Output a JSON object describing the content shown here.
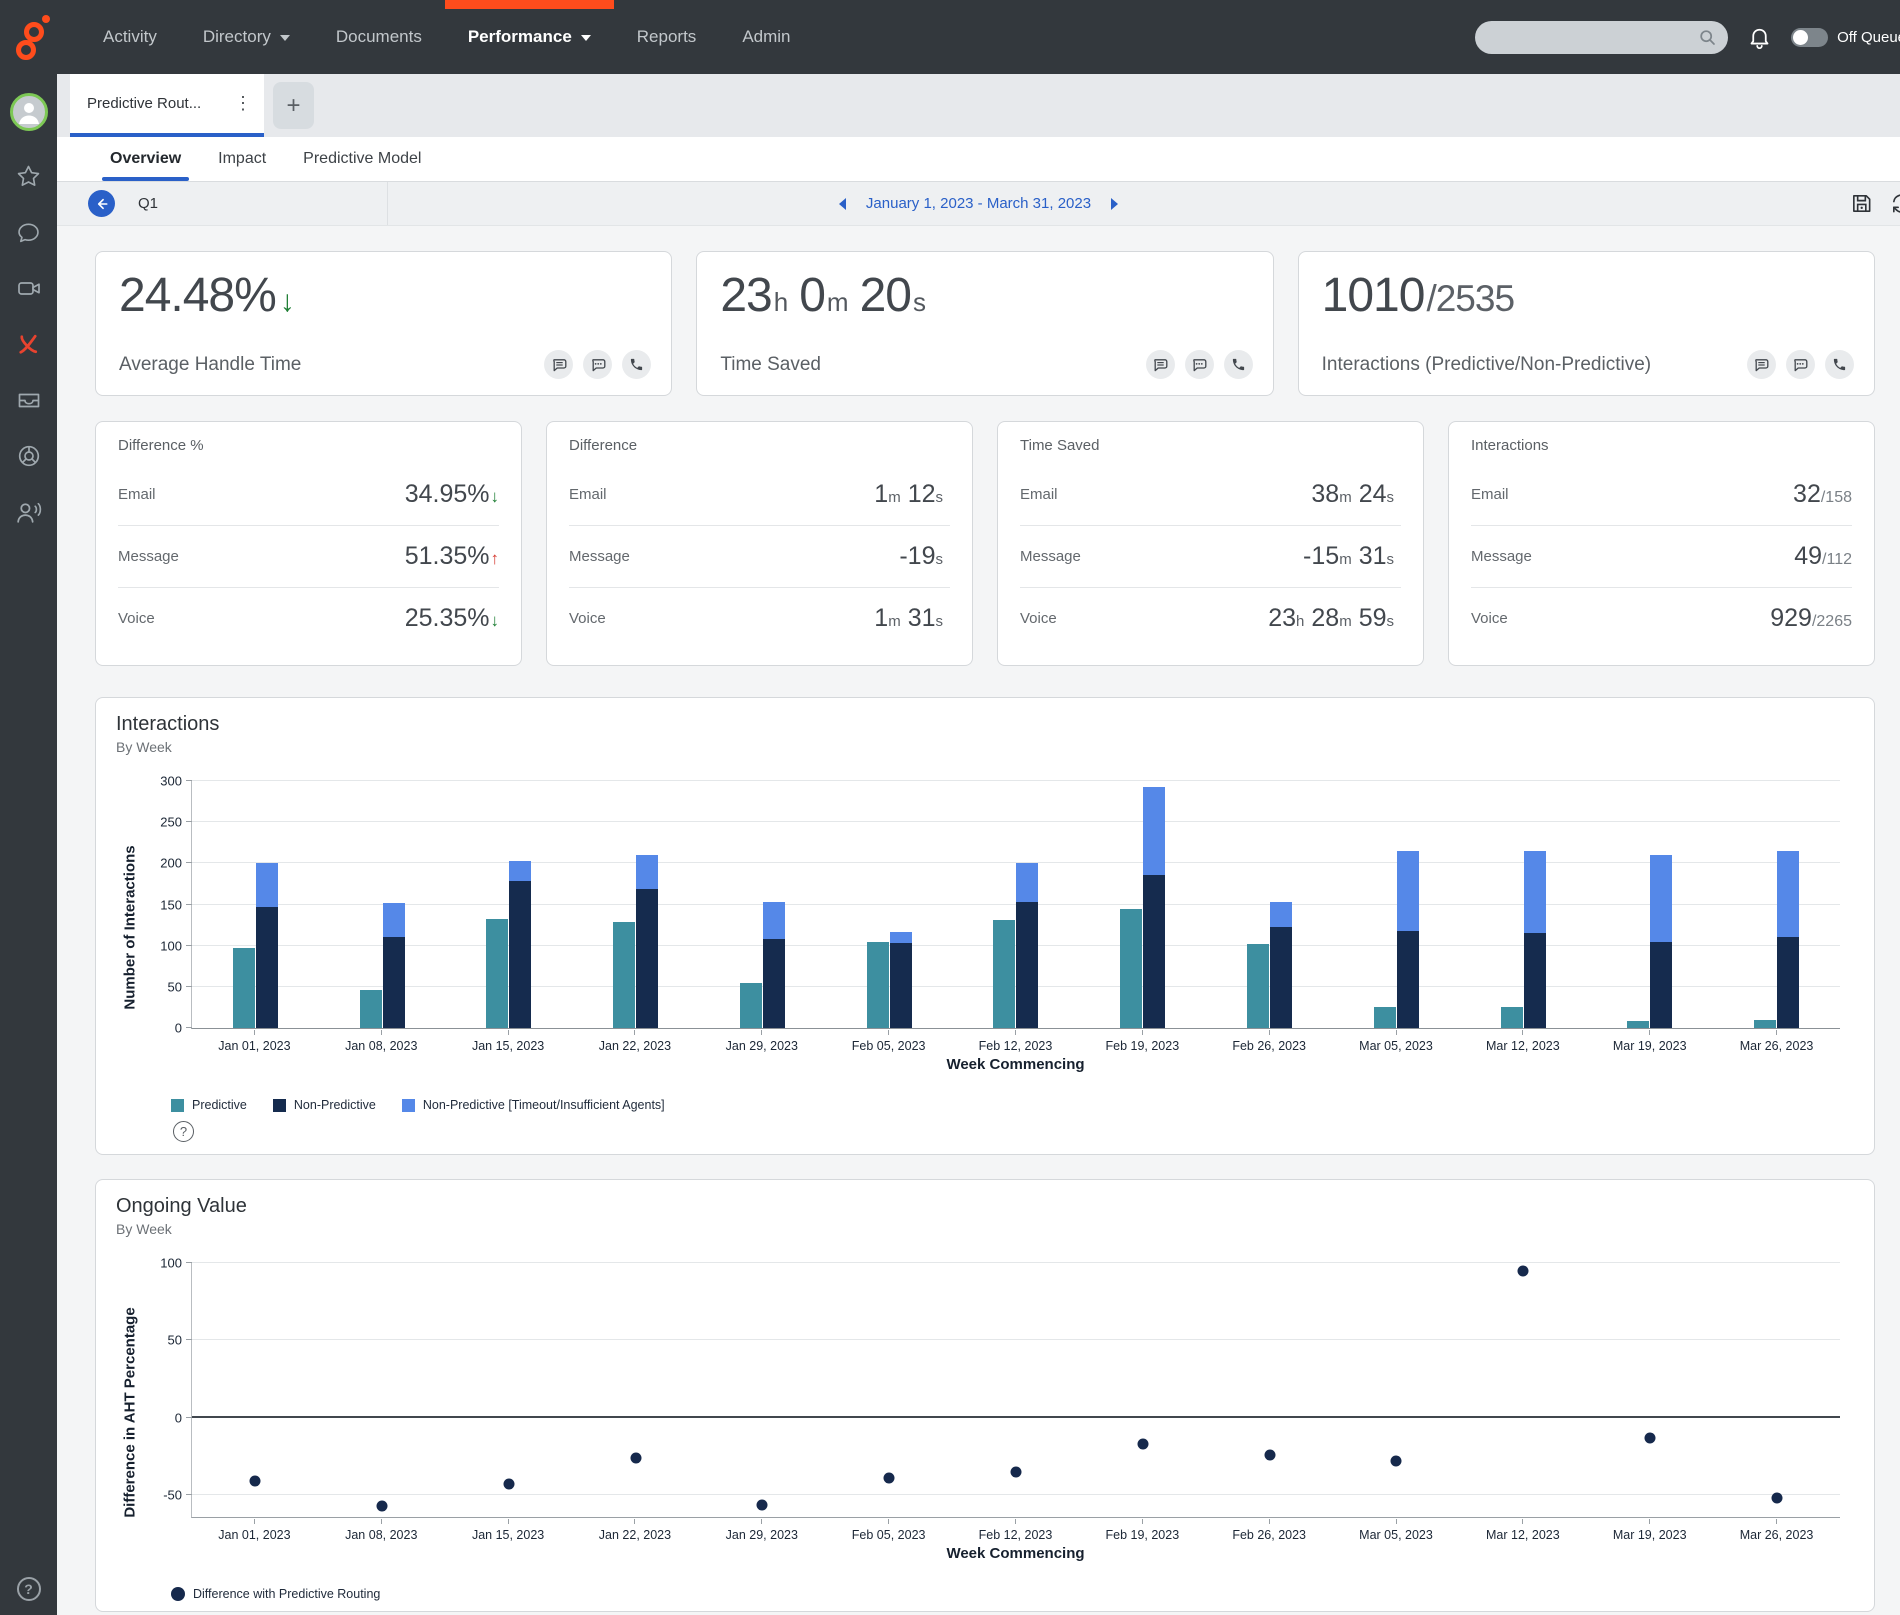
{
  "colors": {
    "brand_orange": "#ff4c1c",
    "accent_blue": "#2a60c8",
    "trend_down_green": "#1e7e34",
    "trend_up_red": "#d63c32",
    "predictive_teal": "#3d8fa0",
    "non_predictive_navy": "#152b4e",
    "timeout_blue": "#5588e8",
    "scatter_navy": "#16294c"
  },
  "topbar": {
    "nav": [
      {
        "label": "Activity"
      },
      {
        "label": "Directory",
        "caret": true
      },
      {
        "label": "Documents"
      },
      {
        "label": "Performance",
        "caret": true,
        "active": true
      },
      {
        "label": "Reports"
      },
      {
        "label": "Admin"
      }
    ],
    "search_placeholder": "",
    "off_queue_label": "Off Queue"
  },
  "tab_bar": {
    "active_tab": "Predictive Rout...",
    "menu_icon": "⋮",
    "add_label": "+"
  },
  "subtabs": {
    "items": [
      {
        "label": "Overview",
        "active": true
      },
      {
        "label": "Impact"
      },
      {
        "label": "Predictive Model"
      }
    ]
  },
  "filter_bar": {
    "quarter": "Q1",
    "date_range": "January 1, 2023 - March 31, 2023"
  },
  "kpis": [
    {
      "label": "Average Handle Time",
      "parts": [
        {
          "v": "24.48%"
        }
      ],
      "trend": "down"
    },
    {
      "label": "Time Saved",
      "parts": [
        {
          "v": "23",
          "u": "h"
        },
        {
          "v": "0",
          "u": "m"
        },
        {
          "v": "20",
          "u": "s"
        }
      ]
    },
    {
      "label": "Interactions (Predictive/Non-Predictive)",
      "parts": [
        {
          "v": "1010"
        }
      ],
      "den": "/2535"
    }
  ],
  "metric_cards": [
    {
      "title": "Difference %",
      "rows": [
        {
          "label": "Email",
          "parts": [
            {
              "v": "34.95%"
            }
          ],
          "trend": "down"
        },
        {
          "label": "Message",
          "parts": [
            {
              "v": "51.35%"
            }
          ],
          "trend": "up"
        },
        {
          "label": "Voice",
          "parts": [
            {
              "v": "25.35%"
            }
          ],
          "trend": "down"
        }
      ]
    },
    {
      "title": "Difference",
      "rows": [
        {
          "label": "Email",
          "parts": [
            {
              "v": "1",
              "u": "m"
            },
            {
              "v": "12",
              "u": "s"
            }
          ]
        },
        {
          "label": "Message",
          "parts": [
            {
              "v": "-19",
              "u": "s"
            }
          ]
        },
        {
          "label": "Voice",
          "parts": [
            {
              "v": "1",
              "u": "m"
            },
            {
              "v": "31",
              "u": "s"
            }
          ]
        }
      ]
    },
    {
      "title": "Time Saved",
      "rows": [
        {
          "label": "Email",
          "parts": [
            {
              "v": "38",
              "u": "m"
            },
            {
              "v": "24",
              "u": "s"
            }
          ]
        },
        {
          "label": "Message",
          "parts": [
            {
              "v": "-15",
              "u": "m"
            },
            {
              "v": "31",
              "u": "s"
            }
          ]
        },
        {
          "label": "Voice",
          "parts": [
            {
              "v": "23",
              "u": "h"
            },
            {
              "v": "28",
              "u": "m"
            },
            {
              "v": "59",
              "u": "s"
            }
          ]
        }
      ]
    },
    {
      "title": "Interactions",
      "rows": [
        {
          "label": "Email",
          "parts": [
            {
              "v": "32"
            }
          ],
          "den": "/158"
        },
        {
          "label": "Message",
          "parts": [
            {
              "v": "49"
            }
          ],
          "den": "/112"
        },
        {
          "label": "Voice",
          "parts": [
            {
              "v": "929"
            }
          ],
          "den": "/2265"
        }
      ]
    }
  ],
  "chart_data": [
    {
      "type": "bar",
      "title": "Interactions",
      "subtitle": "By Week",
      "xlabel": "Week Commencing",
      "ylabel": "Number of Interactions",
      "ylim": [
        0,
        300
      ],
      "yticks": [
        0,
        50,
        100,
        150,
        200,
        250,
        300
      ],
      "grid": true,
      "legend_position": "bottom",
      "categories": [
        "Jan 01, 2023",
        "Jan 08, 2023",
        "Jan 15, 2023",
        "Jan 22, 2023",
        "Jan 29, 2023",
        "Feb 05, 2023",
        "Feb 12, 2023",
        "Feb 19, 2023",
        "Feb 26, 2023",
        "Mar 05, 2023",
        "Mar 12, 2023",
        "Mar 19, 2023",
        "Mar 26, 2023"
      ],
      "series": [
        {
          "name": "Predictive",
          "color": "#3d8fa0",
          "stacked": false,
          "values": [
            97,
            46,
            133,
            129,
            55,
            104,
            131,
            144,
            102,
            25,
            25,
            8,
            10
          ]
        },
        {
          "name": "Non-Predictive",
          "color": "#152b4e",
          "stacked": true,
          "values": [
            147,
            111,
            178,
            169,
            108,
            103,
            153,
            186,
            123,
            118,
            115,
            105,
            110
          ]
        },
        {
          "name": "Non-Predictive [Timeout/Insufficient Agents]",
          "color": "#5588e8",
          "stacked": true,
          "values": [
            53,
            41,
            25,
            41,
            45,
            14,
            47,
            107,
            30,
            97,
            100,
            105,
            105
          ]
        }
      ]
    },
    {
      "type": "scatter",
      "title": "Ongoing Value",
      "subtitle": "By Week",
      "xlabel": "Week Commencing",
      "ylabel": "Difference in AHT Percentage",
      "ylim": [
        -64,
        100
      ],
      "yticks": [
        100,
        50,
        0,
        -50
      ],
      "zero_line": true,
      "grid": true,
      "legend_position": "bottom",
      "categories": [
        "Jan 01, 2023",
        "Jan 08, 2023",
        "Jan 15, 2023",
        "Jan 22, 2023",
        "Jan 29, 2023",
        "Feb 05, 2023",
        "Feb 12, 2023",
        "Feb 19, 2023",
        "Feb 26, 2023",
        "Mar 05, 2023",
        "Mar 12, 2023",
        "Mar 19, 2023",
        "Mar 26, 2023"
      ],
      "series": [
        {
          "name": "Difference with Predictive Routing",
          "color": "#16294c",
          "values": [
            -41,
            -57,
            -43,
            -26,
            -56,
            -39,
            -35,
            -17,
            -24,
            -28,
            95,
            -13,
            -52
          ]
        }
      ]
    }
  ]
}
